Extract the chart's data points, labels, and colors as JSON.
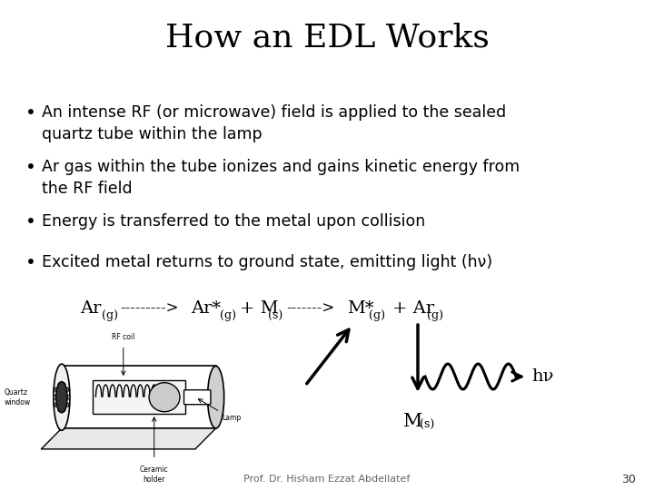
{
  "title": "How an EDL Works",
  "title_fontsize": 26,
  "bg_color": "#ffffff",
  "text_color": "#000000",
  "bullets": [
    "An intense RF (or microwave) field is applied to the sealed\nquartz tube within the lamp",
    "Ar gas within the tube ionizes and gains kinetic energy from\nthe RF field",
    "Energy is transferred to the metal upon collision",
    "Excited metal returns to ground state, emitting light (hν)"
  ],
  "bullet_fontsize": 12.5,
  "footer_text": "Prof. Dr. Hisham Ezzat Abdellatef",
  "footer_page": "30"
}
